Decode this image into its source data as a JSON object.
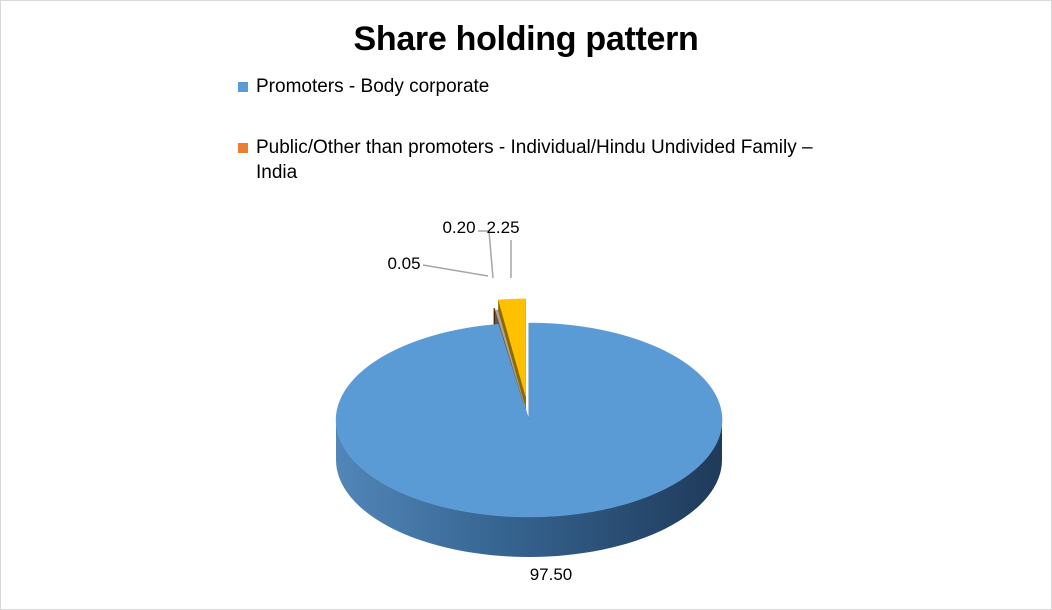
{
  "chart_data": {
    "type": "pie",
    "title": "Share holding pattern",
    "legend_position": "top",
    "slices": [
      {
        "name": "Promoters - Body corporate",
        "value": 97.5,
        "label": "97.50",
        "color": "#5b9bd5",
        "in_legend": true
      },
      {
        "name": "",
        "value": 0.05,
        "label": "0.05",
        "color": "#843c0c",
        "in_legend": false
      },
      {
        "name": "",
        "value": 0.2,
        "label": "0.20",
        "color": "#a5a5a5",
        "in_legend": false
      },
      {
        "name": "",
        "value": 2.25,
        "label": "2.25",
        "color": "#ffc000",
        "in_legend": false
      }
    ],
    "legend": [
      {
        "label": "Promoters - Body corporate",
        "color": "#5b9bd5"
      },
      {
        "label": "Public/Other than promoters - Individual/Hindu Undivided Family – India",
        "color": "#ed7d31"
      }
    ]
  }
}
